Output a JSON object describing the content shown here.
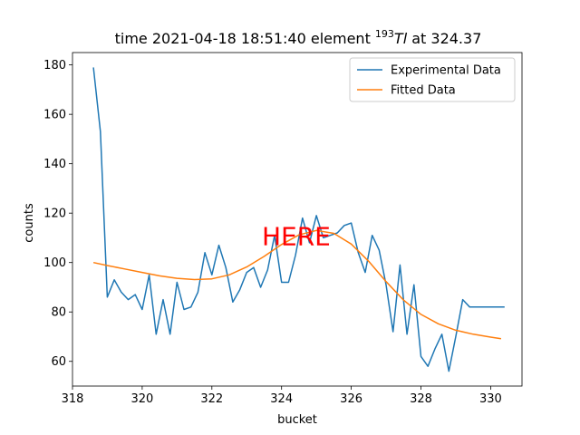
{
  "chart_data": {
    "type": "line",
    "title_prefix": "time 2021-04-18 18:51:40 element ",
    "title_mass": "193",
    "title_symbol": "Tl",
    "title_suffix": " at 324.37",
    "xlabel": "bucket",
    "ylabel": "counts",
    "xlim": [
      318,
      330.9
    ],
    "ylim": [
      50,
      185
    ],
    "xticks": [
      318,
      320,
      322,
      324,
      326,
      328,
      330
    ],
    "yticks": [
      60,
      80,
      100,
      120,
      140,
      160,
      180
    ],
    "grid": false,
    "legend_position": "top-right",
    "annotation": {
      "text": "HERE",
      "x": 324.37,
      "y": 111,
      "color": "#ff0000"
    },
    "series": [
      {
        "name": "Experimental Data",
        "color": "#1f77b4",
        "x": [
          318.6,
          318.8,
          319.0,
          319.2,
          319.4,
          319.6,
          319.8,
          320.0,
          320.2,
          320.4,
          320.6,
          320.8,
          321.0,
          321.2,
          321.4,
          321.6,
          321.8,
          322.0,
          322.2,
          322.4,
          322.6,
          322.8,
          323.0,
          323.2,
          323.4,
          323.6,
          323.8,
          324.0,
          324.2,
          324.4,
          324.6,
          324.8,
          325.0,
          325.2,
          325.4,
          325.6,
          325.8,
          326.0,
          326.2,
          326.4,
          326.6,
          326.8,
          327.0,
          327.2,
          327.4,
          327.6,
          327.8,
          328.0,
          328.2,
          328.4,
          328.6,
          328.8,
          329.0,
          329.2,
          329.4,
          329.6,
          329.8,
          330.0,
          330.2,
          330.4
        ],
        "y": [
          179,
          153,
          86,
          93,
          88,
          85,
          87,
          81,
          95,
          71,
          85,
          71,
          92,
          81,
          82,
          88,
          104,
          95,
          107,
          98,
          84,
          89,
          96,
          98,
          90,
          97,
          111,
          92,
          92,
          103,
          118,
          108,
          119,
          110,
          111,
          112,
          115,
          116,
          104,
          96,
          111,
          105,
          91,
          72,
          99,
          71,
          91,
          62,
          58,
          65,
          71,
          56,
          70,
          85,
          82,
          82,
          82,
          82,
          82,
          82
        ]
      },
      {
        "name": "Fitted Data",
        "color": "#ff7f0e",
        "x": [
          318.6,
          319.0,
          319.5,
          320.0,
          320.5,
          321.0,
          321.5,
          322.0,
          322.5,
          323.0,
          323.5,
          324.0,
          324.5,
          325.0,
          325.5,
          326.0,
          326.5,
          327.0,
          327.5,
          328.0,
          328.5,
          329.0,
          329.5,
          330.0,
          330.3
        ],
        "y": [
          100,
          98.8,
          97.4,
          96.0,
          94.6,
          93.6,
          93.1,
          93.4,
          95.0,
          98.2,
          102.5,
          107.3,
          111.2,
          113.0,
          111.8,
          107.5,
          100.5,
          92.3,
          84.8,
          79.0,
          75.2,
          72.6,
          71.0,
          69.8,
          69.2
        ]
      }
    ]
  }
}
